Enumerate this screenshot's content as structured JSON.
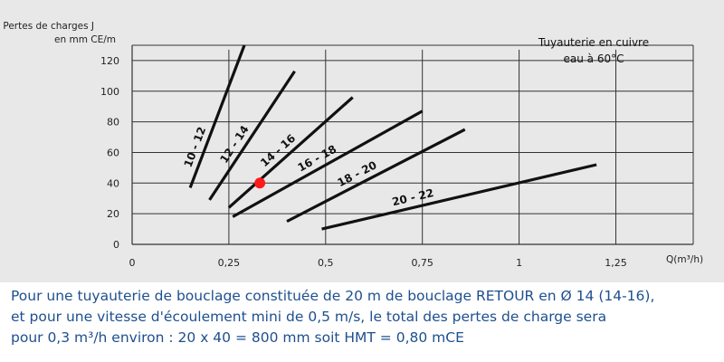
{
  "chart_data": {
    "type": "line",
    "ylabel": [
      "Pertes de charges J",
      "en mm CE/m"
    ],
    "xlabel": "Q(m³/h)",
    "annotation": [
      "Tuyauterie en cuivre",
      "eau à 60°C"
    ],
    "xlim": [
      0,
      1.45
    ],
    "ylim": [
      0,
      130
    ],
    "xticks": [
      0,
      0.25,
      0.5,
      0.75,
      1,
      1.25
    ],
    "xtick_labels": [
      "0",
      "0,25",
      "0,5",
      "0,75",
      "1",
      "1,25"
    ],
    "yticks": [
      0,
      20,
      40,
      60,
      80,
      100,
      120
    ],
    "ytick_labels": [
      "0",
      "20",
      "40",
      "60",
      "80",
      "100",
      "120"
    ],
    "grid": true,
    "series": [
      {
        "name": "10 - 12",
        "x": [
          0.15,
          0.29
        ],
        "y": [
          37,
          130
        ]
      },
      {
        "name": "12 - 14",
        "x": [
          0.2,
          0.42
        ],
        "y": [
          29,
          113
        ]
      },
      {
        "name": "14 - 16",
        "x": [
          0.25,
          0.57
        ],
        "y": [
          24,
          96
        ]
      },
      {
        "name": "16 - 18",
        "x": [
          0.26,
          0.75
        ],
        "y": [
          18,
          87
        ]
      },
      {
        "name": "18 - 20",
        "x": [
          0.4,
          0.86
        ],
        "y": [
          15,
          75
        ]
      },
      {
        "name": "20 - 22",
        "x": [
          0.49,
          1.2
        ],
        "y": [
          10,
          52
        ]
      }
    ],
    "marker": {
      "x": 0.33,
      "y": 40,
      "color": "#ff1a1a"
    }
  },
  "caption": {
    "line1": "Pour une tuyauterie de bouclage constituée de 20 m de bouclage RETOUR en Ø 14 (14-16),",
    "line2": "et pour une vitesse d'écoulement mini de 0,5 m/s, le total des pertes de charge sera",
    "line3": "pour 0,3 m³/h environ : 20 x 40 = 800 mm soit HMT = 0,80 mCE"
  }
}
